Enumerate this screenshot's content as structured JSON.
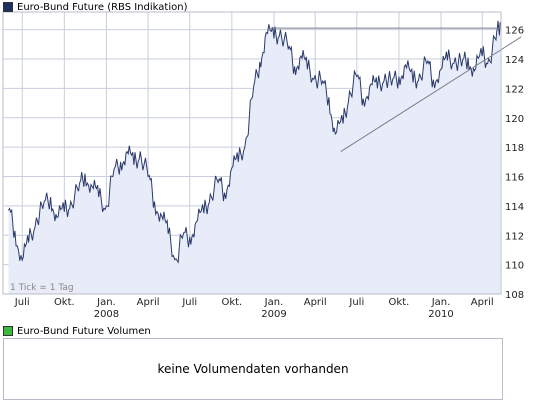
{
  "title": "Euro-Bund Future (RBS Indikation)",
  "volume_title": "Euro-Bund Future Volumen",
  "volume_message": "keine Volumendaten vorhanden",
  "tick_note": "1 Tick = 1 Tag",
  "colors": {
    "line": "#2a3a6a",
    "area": "#e8ecf8",
    "grid": "#c8cede",
    "trend": "#7a7f8c",
    "price_swatch": "#1f2f5f",
    "volume_swatch": "#3cb83c"
  },
  "chart_data": {
    "type": "area",
    "title": "Euro-Bund Future (RBS Indikation)",
    "x_ticks": [
      "Juli",
      "Okt.",
      "Jan.",
      "April",
      "Juli",
      "Okt.",
      "Jan.",
      "April",
      "Juli",
      "Okt.",
      "Jan.",
      "April"
    ],
    "year_labels": [
      {
        "label": "2008",
        "at": "Jan."
      },
      {
        "label": "2009",
        "at": "Jan."
      },
      {
        "label": "2010",
        "at": "Jan."
      }
    ],
    "y_ticks": [
      108,
      110,
      112,
      114,
      116,
      118,
      120,
      122,
      124,
      126
    ],
    "ylim": [
      108,
      127.2
    ],
    "x": [
      "2007-06-01",
      "2007-06-15",
      "2007-07-01",
      "2007-07-15",
      "2007-08-01",
      "2007-08-15",
      "2007-09-01",
      "2007-09-15",
      "2007-10-01",
      "2007-10-15",
      "2007-11-01",
      "2007-11-15",
      "2007-12-01",
      "2007-12-15",
      "2008-01-01",
      "2008-01-15",
      "2008-02-01",
      "2008-02-15",
      "2008-03-01",
      "2008-03-15",
      "2008-04-01",
      "2008-04-15",
      "2008-05-01",
      "2008-05-15",
      "2008-06-01",
      "2008-06-15",
      "2008-07-01",
      "2008-07-15",
      "2008-08-01",
      "2008-08-15",
      "2008-09-01",
      "2008-09-15",
      "2008-10-01",
      "2008-10-15",
      "2008-11-01",
      "2008-11-15",
      "2008-12-01",
      "2008-12-15",
      "2009-01-01",
      "2009-01-15",
      "2009-02-01",
      "2009-02-15",
      "2009-03-01",
      "2009-03-15",
      "2009-04-01",
      "2009-04-15",
      "2009-05-01",
      "2009-05-15",
      "2009-06-01",
      "2009-06-15",
      "2009-07-01",
      "2009-07-15",
      "2009-08-01",
      "2009-08-15",
      "2009-09-01",
      "2009-09-15",
      "2009-10-01",
      "2009-10-15",
      "2009-11-01",
      "2009-11-15",
      "2009-12-01",
      "2009-12-15",
      "2010-01-01",
      "2010-01-15",
      "2010-02-01",
      "2010-02-15",
      "2010-03-01",
      "2010-03-15",
      "2010-04-01",
      "2010-04-15",
      "2010-05-01",
      "2010-05-10"
    ],
    "series": [
      {
        "values": [
          113.7,
          112.3,
          110.3,
          111.5,
          113.2,
          113.8,
          114.6,
          113.2,
          113.6,
          114.3,
          115.0,
          116.2,
          115.3,
          114.6,
          114.0,
          116.0,
          117.0,
          117.7,
          116.8,
          117.7,
          116.0,
          114.3,
          113.3,
          112.1,
          110.4,
          111.8,
          111.9,
          112.9,
          113.5,
          114.8,
          115.6,
          114.9,
          116.6,
          117.0,
          118.6,
          121.4,
          123.8,
          125.8,
          125.4,
          126.0,
          124.7,
          123.5,
          124.2,
          123.3,
          122.9,
          122.3,
          121.4,
          118.9,
          119.6,
          121.8,
          122.8,
          121.3,
          122.3,
          122.0,
          123.0,
          122.2,
          122.8,
          123.6,
          122.4,
          123.0,
          123.7,
          122.6,
          123.3,
          123.9,
          124.1,
          123.5,
          124.1,
          123.2,
          124.2,
          124.0,
          125.3,
          126.5
        ]
      }
    ],
    "trendlines": [
      {
        "from": {
          "x": "2008-12-20",
          "y": 126.1
        },
        "to": {
          "x": "2010-05-10",
          "y": 126.1
        }
      },
      {
        "from": {
          "x": "2009-05-27",
          "y": 117.7
        },
        "to": {
          "x": "2010-06-25",
          "y": 125.5
        }
      }
    ],
    "grid": true,
    "legend": "top-left"
  }
}
